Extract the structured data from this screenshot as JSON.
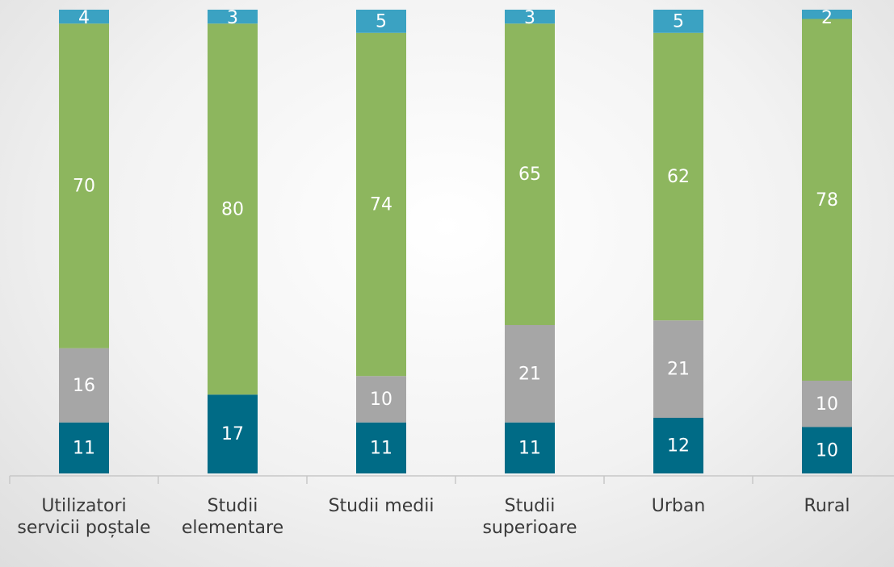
{
  "chart_data": {
    "type": "stacked_bar",
    "categories": [
      "Utilizatori servicii poștale",
      "Studii elementare",
      "Studii medii",
      "Studii superioare",
      "Urban",
      "Rural"
    ],
    "series": [
      {
        "color": "#006b86",
        "values": [
          11,
          17,
          11,
          11,
          12,
          10
        ]
      },
      {
        "color": "#a6a6a6",
        "values": [
          16,
          null,
          10,
          21,
          21,
          10
        ]
      },
      {
        "color": "#8db65e",
        "values": [
          70,
          80,
          74,
          65,
          62,
          78
        ]
      },
      {
        "color": "#3ba2c2",
        "values": [
          4,
          3,
          5,
          3,
          5,
          2
        ]
      }
    ],
    "ylim": [
      0,
      100
    ]
  }
}
